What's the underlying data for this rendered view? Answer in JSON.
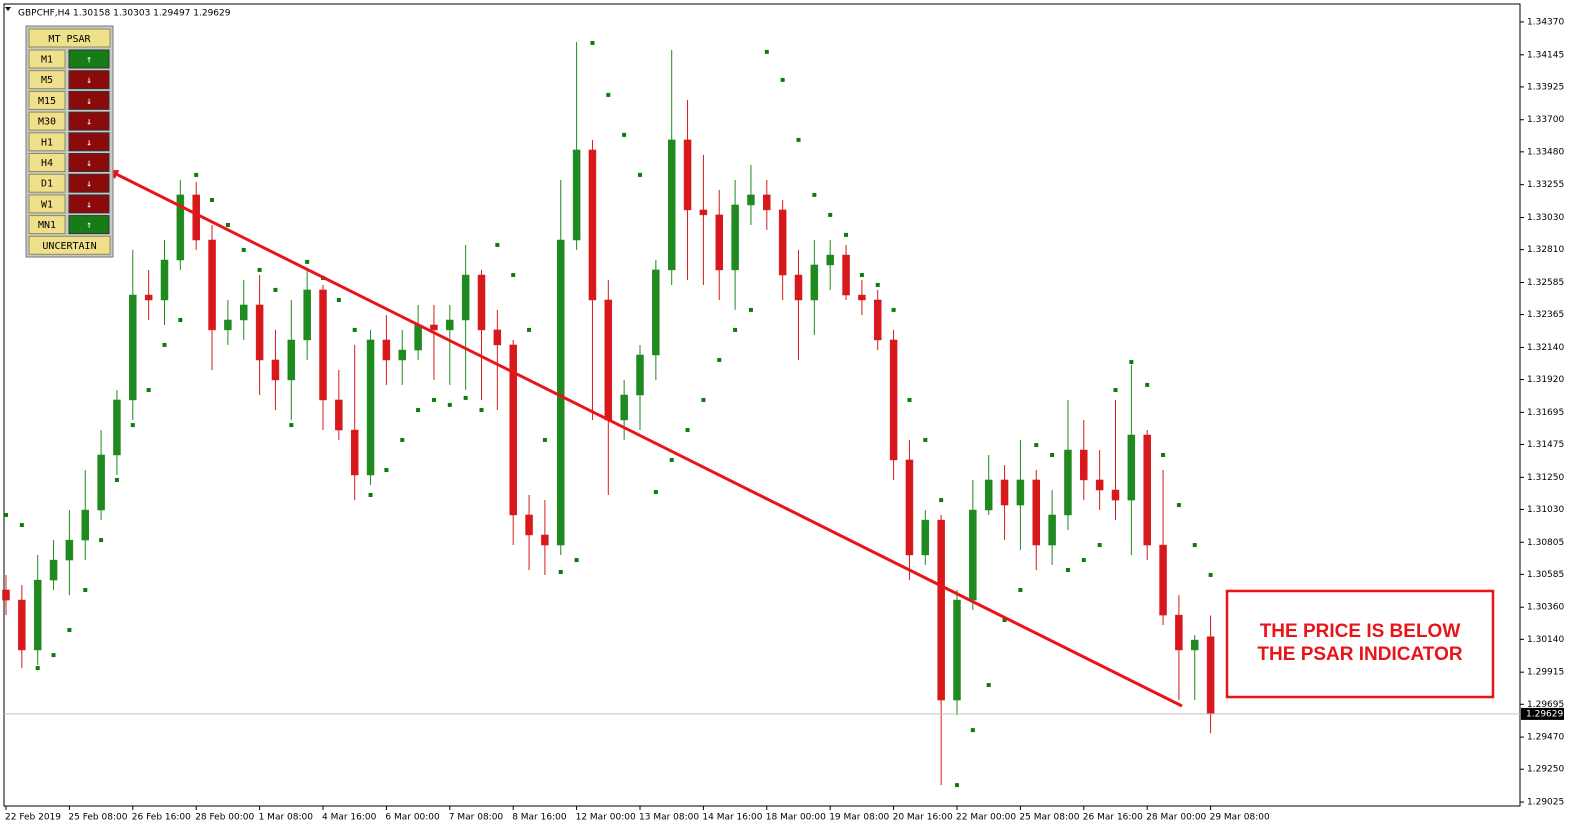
{
  "chart_data": {
    "type": "candlestick",
    "header": "GBPCHF,H4  1.30158 1.30303 1.29497 1.29629",
    "categories": [
      "22 Feb 2019",
      null,
      null,
      null,
      "25 Feb 08:00",
      null,
      null,
      null,
      "26 Feb 16:00",
      null,
      null,
      null,
      "28 Feb 00:00",
      null,
      null,
      null,
      "1 Mar 08:00",
      null,
      null,
      null,
      "4 Mar 16:00",
      null,
      null,
      null,
      "6 Mar 00:00",
      null,
      null,
      null,
      "7 Mar 08:00",
      null,
      null,
      null,
      "8 Mar 16:00",
      null,
      null,
      null,
      "12 Mar 00:00",
      null,
      null,
      null,
      "13 Mar 08:00",
      null,
      null,
      null,
      "14 Mar 16:00",
      null,
      null,
      null,
      "18 Mar 00:00",
      null,
      null,
      null,
      "19 Mar 08:00",
      null,
      null,
      null,
      "20 Mar 16:00",
      null,
      null,
      null,
      "22 Mar 00:00",
      null,
      null,
      null,
      "25 Mar 08:00",
      null,
      null,
      null,
      "26 Mar 16:00",
      null,
      null,
      null,
      "28 Mar 00:00",
      null,
      null,
      null,
      "29 Mar 08:00"
    ],
    "open": [
      1.30478,
      1.30409,
      1.30067,
      1.30546,
      1.30683,
      1.3082,
      1.31026,
      1.31403,
      1.3178,
      1.32499,
      1.32465,
      1.32739,
      1.33185,
      1.32876,
      1.3226,
      1.32328,
      1.32431,
      1.32054,
      1.31917,
      1.32191,
      1.32534,
      1.3178,
      1.31574,
      1.31266,
      1.32191,
      1.32054,
      1.32122,
      1.32294,
      1.3226,
      1.32328,
      1.32636,
      1.3226,
      1.32157,
      1.30992,
      1.30855,
      1.30786,
      1.32876,
      1.33493,
      1.32465,
      1.31643,
      1.31814,
      1.32088,
      1.32671,
      1.33562,
      1.33082,
      1.33048,
      1.32671,
      1.33116,
      1.33185,
      1.33082,
      1.32636,
      1.32465,
      1.32705,
      1.32773,
      1.32499,
      1.32465,
      1.32191,
      1.31369,
      1.30718,
      1.30957,
      1.29724,
      1.30409,
      1.31026,
      1.31232,
      1.3106,
      1.31232,
      1.30786,
      1.30992,
      1.31437,
      1.31232,
      1.31163,
      1.31094,
      1.3154,
      1.30786,
      1.30306,
      1.30067,
      1.30158
    ],
    "high": [
      1.30581,
      1.30512,
      1.30718,
      1.3082,
      1.31026,
      1.313,
      1.31574,
      1.31848,
      1.32808,
      1.32671,
      1.32876,
      1.33287,
      1.33274,
      1.32979,
      1.32465,
      1.32602,
      1.32636,
      1.3226,
      1.32465,
      1.32671,
      1.32568,
      1.31985,
      1.32157,
      1.3226,
      1.32362,
      1.3226,
      1.32431,
      1.32431,
      1.32431,
      1.32842,
      1.32671,
      1.32397,
      1.32191,
      1.31129,
      1.31094,
      1.33287,
      1.34233,
      1.33562,
      1.32602,
      1.31917,
      1.32157,
      1.32739,
      1.34178,
      1.33836,
      1.33459,
      1.33219,
      1.33287,
      1.3339,
      1.33287,
      1.3315,
      1.32808,
      1.32876,
      1.32876,
      1.32842,
      1.32602,
      1.32534,
      1.3226,
      1.31506,
      1.31026,
      1.30992,
      1.30478,
      1.31232,
      1.31403,
      1.31334,
      1.31506,
      1.313,
      1.31163,
      1.3178,
      1.31643,
      1.31437,
      1.3178,
      1.3202,
      1.31574,
      1.313,
      1.30443,
      1.30169,
      1.30303
    ],
    "low": [
      1.30306,
      1.29943,
      1.29964,
      1.30478,
      1.30443,
      1.30683,
      1.30957,
      1.31266,
      1.31643,
      1.32328,
      1.32294,
      1.32671,
      1.32808,
      1.31985,
      1.32157,
      1.32191,
      1.31814,
      1.31711,
      1.31643,
      1.32054,
      1.31574,
      1.31506,
      1.31094,
      1.31197,
      1.31883,
      1.31883,
      1.32054,
      1.31917,
      1.31883,
      1.31848,
      1.3178,
      1.31711,
      1.30786,
      1.30615,
      1.30581,
      1.30718,
      1.32808,
      1.31643,
      1.31129,
      1.31506,
      1.31574,
      1.31917,
      1.32568,
      1.32602,
      1.32568,
      1.32465,
      1.32397,
      1.32979,
      1.32945,
      1.32465,
      1.32054,
      1.32225,
      1.32534,
      1.32465,
      1.32362,
      1.32122,
      1.31232,
      1.30546,
      1.30649,
      1.29141,
      1.29621,
      1.30341,
      1.30992,
      1.3082,
      1.30752,
      1.30615,
      1.30649,
      1.30889,
      1.31094,
      1.31026,
      1.30957,
      1.30718,
      1.30683,
      1.30238,
      1.29724,
      1.29724,
      1.29497
    ],
    "close": [
      1.30409,
      1.30067,
      1.30546,
      1.30683,
      1.3082,
      1.31026,
      1.31403,
      1.3178,
      1.32499,
      1.32465,
      1.32739,
      1.33185,
      1.32876,
      1.3226,
      1.32328,
      1.32431,
      1.32054,
      1.31917,
      1.32191,
      1.32534,
      1.3178,
      1.31574,
      1.31266,
      1.32191,
      1.32054,
      1.32122,
      1.32294,
      1.3226,
      1.32328,
      1.32636,
      1.3226,
      1.32157,
      1.30992,
      1.30855,
      1.30786,
      1.32876,
      1.33493,
      1.32465,
      1.31643,
      1.31814,
      1.32088,
      1.32671,
      1.33562,
      1.33082,
      1.33048,
      1.32671,
      1.33116,
      1.33185,
      1.33082,
      1.32636,
      1.32465,
      1.32705,
      1.32773,
      1.32499,
      1.32465,
      1.32191,
      1.31369,
      1.30718,
      1.30957,
      1.29724,
      1.30409,
      1.31026,
      1.31232,
      1.3106,
      1.31232,
      1.30786,
      1.30992,
      1.31437,
      1.31232,
      1.31163,
      1.31094,
      1.3154,
      1.30786,
      1.30306,
      1.30067,
      1.30135,
      1.29629
    ],
    "psar": [
      1.30992,
      1.30923,
      1.29943,
      1.30032,
      1.30204,
      1.30478,
      1.3082,
      1.31232,
      1.31608,
      1.31848,
      1.32157,
      1.32328,
      1.33322,
      1.3315,
      1.32979,
      1.32808,
      1.32671,
      1.32534,
      1.31608,
      1.32726,
      1.32616,
      1.32465,
      1.3226,
      1.31129,
      1.313,
      1.31506,
      1.31711,
      1.3178,
      1.31746,
      1.31794,
      1.31711,
      1.32842,
      1.32636,
      1.3226,
      1.31506,
      1.30601,
      1.30683,
      1.34226,
      1.3387,
      1.33596,
      1.33322,
      1.31149,
      1.31369,
      1.31574,
      1.3178,
      1.32054,
      1.3226,
      1.32397,
      1.34165,
      1.33973,
      1.33562,
      1.33185,
      1.33048,
      1.32911,
      1.32636,
      1.32568,
      1.32397,
      1.3178,
      1.31506,
      1.31094,
      1.29141,
      1.29518,
      1.29827,
      1.30272,
      1.30478,
      1.31471,
      1.31403,
      1.30615,
      1.30683,
      1.30786,
      1.31848,
      1.3204,
      1.31883,
      1.31403,
      1.3106,
      1.30786,
      1.30581
    ],
    "up_color": "#1f8a1f",
    "down_color": "#d7191c",
    "psar_color": "#0a7d0a",
    "ylim": [
      1.28998,
      1.34493
    ],
    "yticks": [
      {
        "value": 1.3437,
        "label": "1.34370"
      },
      1.34145,
      {
        "value": 1.33925,
        "label": "1.33925"
      },
      {
        "value": 1.337,
        "label": "1.33700"
      },
      {
        "value": 1.3348,
        "label": "1.33480"
      },
      1.33255,
      {
        "value": 1.3303,
        "label": "1.33030"
      },
      {
        "value": 1.3281,
        "label": "1.32810"
      },
      1.32585,
      1.32365,
      {
        "value": 1.3214,
        "label": "1.32140"
      },
      {
        "value": 1.3192,
        "label": "1.31920"
      },
      1.31695,
      1.31475,
      {
        "value": 1.3125,
        "label": "1.31250"
      },
      {
        "value": 1.3103,
        "label": "1.31030"
      },
      1.30805,
      1.30585,
      {
        "value": 1.3036,
        "label": "1.30360"
      },
      {
        "value": 1.3014,
        "label": "1.30140"
      },
      1.29915,
      1.29695,
      {
        "value": 1.2947,
        "label": "1.29470"
      },
      {
        "value": 1.2925,
        "label": "1.29250"
      },
      1.29025
    ],
    "current_price": 1.29629,
    "grid": false,
    "annotation_lines": [
      "THE PRICE IS BELOW",
      "THE PSAR INDICATOR"
    ]
  },
  "panel": {
    "title": "MT  PSAR",
    "rows": [
      {
        "timeframe": "M1",
        "signal": "↑",
        "color": "#167d16"
      },
      {
        "timeframe": "M5",
        "signal": "↓",
        "color": "#8b0a0a"
      },
      {
        "timeframe": "M15",
        "signal": "↓",
        "color": "#8b0a0a"
      },
      {
        "timeframe": "M30",
        "signal": "↓",
        "color": "#8b0a0a"
      },
      {
        "timeframe": "H1",
        "signal": "↓",
        "color": "#8b0a0a"
      },
      {
        "timeframe": "H4",
        "signal": "↓",
        "color": "#8b0a0a"
      },
      {
        "timeframe": "D1",
        "signal": "↓",
        "color": "#8b0a0a"
      },
      {
        "timeframe": "W1",
        "signal": "↓",
        "color": "#8b0a0a"
      },
      {
        "timeframe": "MN1",
        "signal": "↑",
        "color": "#167d16"
      }
    ],
    "status": "UNCERTAIN"
  }
}
